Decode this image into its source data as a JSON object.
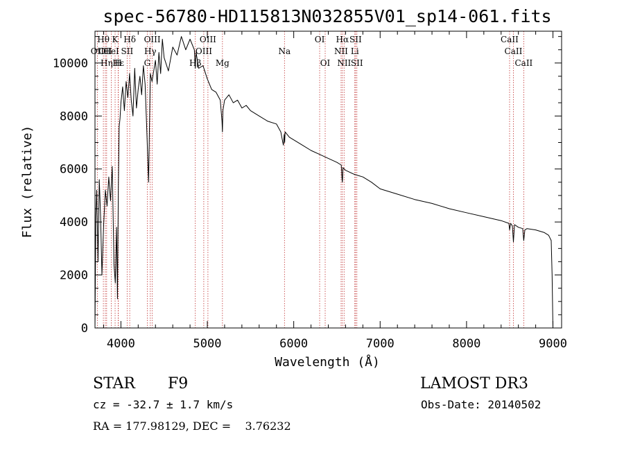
{
  "title": "spec-56780-HD115813N032855V01_sp14-061.fits",
  "chart_data": {
    "type": "line",
    "title": "spec-56780-HD115813N032855V01_sp14-061.fits",
    "xlabel": "Wavelength (Å)",
    "ylabel": "Flux (relative)",
    "xlim": [
      3700,
      9100
    ],
    "ylim": [
      0,
      11200
    ],
    "x_ticks": [
      4000,
      5000,
      6000,
      7000,
      8000,
      9000
    ],
    "x_tick_labels": [
      "4000",
      "5000",
      "6000",
      "7000",
      "8000",
      "9000"
    ],
    "y_ticks": [
      0,
      2000,
      4000,
      6000,
      8000,
      10000
    ],
    "y_tick_labels": [
      "0",
      "2000",
      "4000",
      "6000",
      "8000",
      "10000"
    ],
    "grid": false,
    "series": [
      {
        "x": [
          3700,
          3710,
          3720,
          3735,
          3750,
          3765,
          3780,
          3800,
          3820,
          3840,
          3860,
          3880,
          3900,
          3920,
          3935,
          3950,
          3960,
          3970,
          3980,
          3990,
          4000,
          4020,
          4040,
          4060,
          4080,
          4100,
          4120,
          4140,
          4160,
          4180,
          4200,
          4220,
          4240,
          4260,
          4280,
          4300,
          4320,
          4340,
          4360,
          4380,
          4400,
          4420,
          4440,
          4460,
          4480,
          4500,
          4550,
          4600,
          4650,
          4700,
          4750,
          4800,
          4850,
          4860,
          4870,
          4900,
          4950,
          5000,
          5050,
          5100,
          5150,
          5170,
          5175,
          5180,
          5200,
          5250,
          5300,
          5350,
          5400,
          5450,
          5500,
          5600,
          5700,
          5800,
          5850,
          5880,
          5890,
          5895,
          5900,
          5950,
          6000,
          6100,
          6200,
          6300,
          6400,
          6500,
          6550,
          6560,
          6563,
          6566,
          6570,
          6600,
          6700,
          6800,
          6900,
          7000,
          7200,
          7400,
          7600,
          7800,
          8000,
          8200,
          8400,
          8490,
          8498,
          8510,
          8530,
          8542,
          8555,
          8600,
          8650,
          8662,
          8675,
          8700,
          8800,
          8900,
          8950,
          8980,
          8990,
          9000
        ],
        "y": [
          0,
          4200,
          5200,
          2500,
          5600,
          4200,
          2000,
          3900,
          5200,
          4600,
          5700,
          4800,
          6100,
          2400,
          1700,
          3800,
          1100,
          5300,
          7600,
          7900,
          8500,
          9100,
          8200,
          9300,
          8700,
          9600,
          8600,
          8000,
          9800,
          8300,
          9000,
          9500,
          8800,
          9900,
          9200,
          7400,
          5500,
          9600,
          9300,
          9700,
          10100,
          9200,
          10400,
          9600,
          10900,
          10200,
          9700,
          10600,
          10300,
          11000,
          10500,
          10900,
          10500,
          9800,
          10400,
          9800,
          9900,
          9400,
          9000,
          8900,
          8600,
          7800,
          7400,
          8200,
          8600,
          8800,
          8500,
          8600,
          8300,
          8400,
          8200,
          8000,
          7800,
          7700,
          7400,
          6900,
          7300,
          7000,
          7400,
          7200,
          7100,
          6900,
          6700,
          6550,
          6400,
          6250,
          6150,
          5600,
          5500,
          5700,
          6050,
          5950,
          5800,
          5700,
          5500,
          5250,
          5050,
          4850,
          4700,
          4500,
          4350,
          4200,
          4050,
          3950,
          3700,
          3950,
          3850,
          3250,
          3900,
          3800,
          3750,
          3300,
          3700,
          3750,
          3700,
          3600,
          3500,
          3300,
          2000,
          0
        ]
      }
    ],
    "line_markers": [
      {
        "wl": 3727,
        "label": "OII",
        "row": 2
      },
      {
        "wl": 3797,
        "label": "Hθ",
        "row": 1
      },
      {
        "wl": 3820,
        "label": "OII",
        "row": 2
      },
      {
        "wl": 3835,
        "label": "Hη",
        "row": 3
      },
      {
        "wl": 3889,
        "label": "HeI",
        "row": 2
      },
      {
        "wl": 3933,
        "label": "K",
        "row": 1
      },
      {
        "wl": 3968,
        "label": "H",
        "row": 3
      },
      {
        "wl": 3970,
        "label": "Hε",
        "row": 3
      },
      {
        "wl": 4072,
        "label": "SII",
        "row": 2
      },
      {
        "wl": 4102,
        "label": "Hδ",
        "row": 1
      },
      {
        "wl": 4305,
        "label": "G",
        "row": 3
      },
      {
        "wl": 4340,
        "label": "Hγ",
        "row": 2
      },
      {
        "wl": 4363,
        "label": "OIII",
        "row": 1
      },
      {
        "wl": 4861,
        "label": "Hβ",
        "row": 3
      },
      {
        "wl": 4959,
        "label": "OIII",
        "row": 2
      },
      {
        "wl": 5007,
        "label": "OIII",
        "row": 1
      },
      {
        "wl": 5175,
        "label": "Mg",
        "row": 3
      },
      {
        "wl": 5893,
        "label": "Na",
        "row": 2
      },
      {
        "wl": 6300,
        "label": "OI",
        "row": 1
      },
      {
        "wl": 6364,
        "label": "OI",
        "row": 3
      },
      {
        "wl": 6548,
        "label": "NII",
        "row": 2
      },
      {
        "wl": 6563,
        "label": "Hα",
        "row": 1
      },
      {
        "wl": 6583,
        "label": "NII",
        "row": 3
      },
      {
        "wl": 6707,
        "label": "Li",
        "row": 2
      },
      {
        "wl": 6716,
        "label": "SII",
        "row": 1
      },
      {
        "wl": 6731,
        "label": "SII",
        "row": 3
      },
      {
        "wl": 8498,
        "label": "CaII",
        "row": 1
      },
      {
        "wl": 8542,
        "label": "CaII",
        "row": 2
      },
      {
        "wl": 8662,
        "label": "CaII",
        "row": 3
      }
    ]
  },
  "info": {
    "object_class": "STAR",
    "subclass": "F9",
    "survey": "LAMOST DR3",
    "cz": "cz = -32.7 ± 1.7 km/s",
    "obs_date": "Obs-Date: 20140502",
    "coords": "RA = 177.98129, DEC =    3.76232"
  }
}
